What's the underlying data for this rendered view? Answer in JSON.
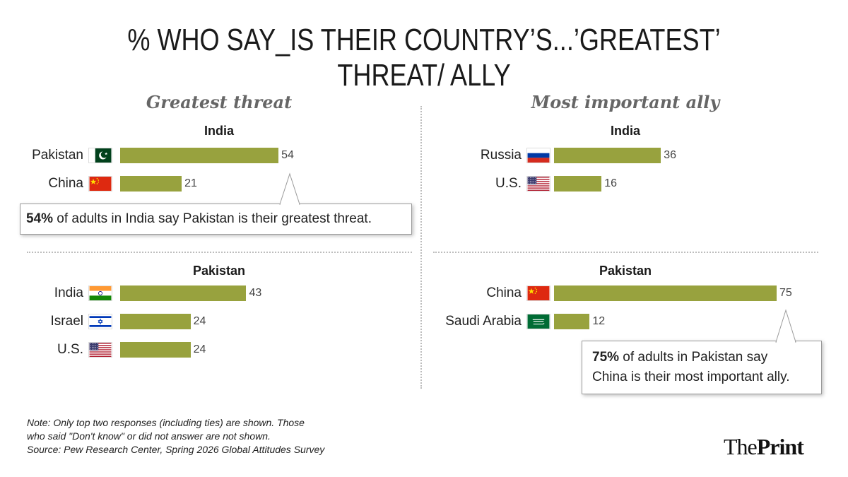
{
  "title": "% WHO SAY_IS THEIR COUNTRY’S...’GREATEST’ THREAT/ ALLY",
  "colors": {
    "bar": "#98a23e"
  },
  "chart_data": [
    {
      "type": "bar",
      "orientation": "horizontal",
      "panel": "Greatest threat",
      "group": "India",
      "categories": [
        "Pakistan",
        "China"
      ],
      "values": [
        54,
        21
      ],
      "flags": [
        "pakistan-flag",
        "china-flag"
      ]
    },
    {
      "type": "bar",
      "orientation": "horizontal",
      "panel": "Greatest threat",
      "group": "Pakistan",
      "categories": [
        "India",
        "Israel",
        "U.S."
      ],
      "values": [
        43,
        24,
        24
      ],
      "flags": [
        "india-flag",
        "israel-flag",
        "us-flag"
      ]
    },
    {
      "type": "bar",
      "orientation": "horizontal",
      "panel": "Most important ally",
      "group": "India",
      "categories": [
        "Russia",
        "U.S."
      ],
      "values": [
        36,
        16
      ],
      "flags": [
        "russia-flag",
        "us-flag"
      ]
    },
    {
      "type": "bar",
      "orientation": "horizontal",
      "panel": "Most important ally",
      "group": "Pakistan",
      "categories": [
        "China",
        "Saudi Arabia"
      ],
      "values": [
        75,
        12
      ],
      "flags": [
        "china-flag",
        "saudi-flag"
      ]
    }
  ],
  "panels": {
    "threat": {
      "heading": "Greatest threat",
      "group_india": "India",
      "group_pakistan": "Pakistan"
    },
    "ally": {
      "heading": "Most important ally",
      "group_india": "India",
      "group_pakistan": "Pakistan"
    }
  },
  "callouts": {
    "threat": {
      "bold": "54%",
      "rest": " of adults in India say Pakistan is their greatest threat."
    },
    "ally": {
      "bold": "75%",
      "line1_rest": " of adults in Pakistan say",
      "line2": "China is their most important ally."
    }
  },
  "note": {
    "line1": "Note: Only top two responses (including ties) are shown. Those",
    "line2": "who said \"Don't know\" or did not answer are not shown.",
    "line3": "Source: Pew Research Center, Spring 2026 Global Attitudes Survey"
  },
  "logo": {
    "part1": "The",
    "part2": "Print"
  }
}
